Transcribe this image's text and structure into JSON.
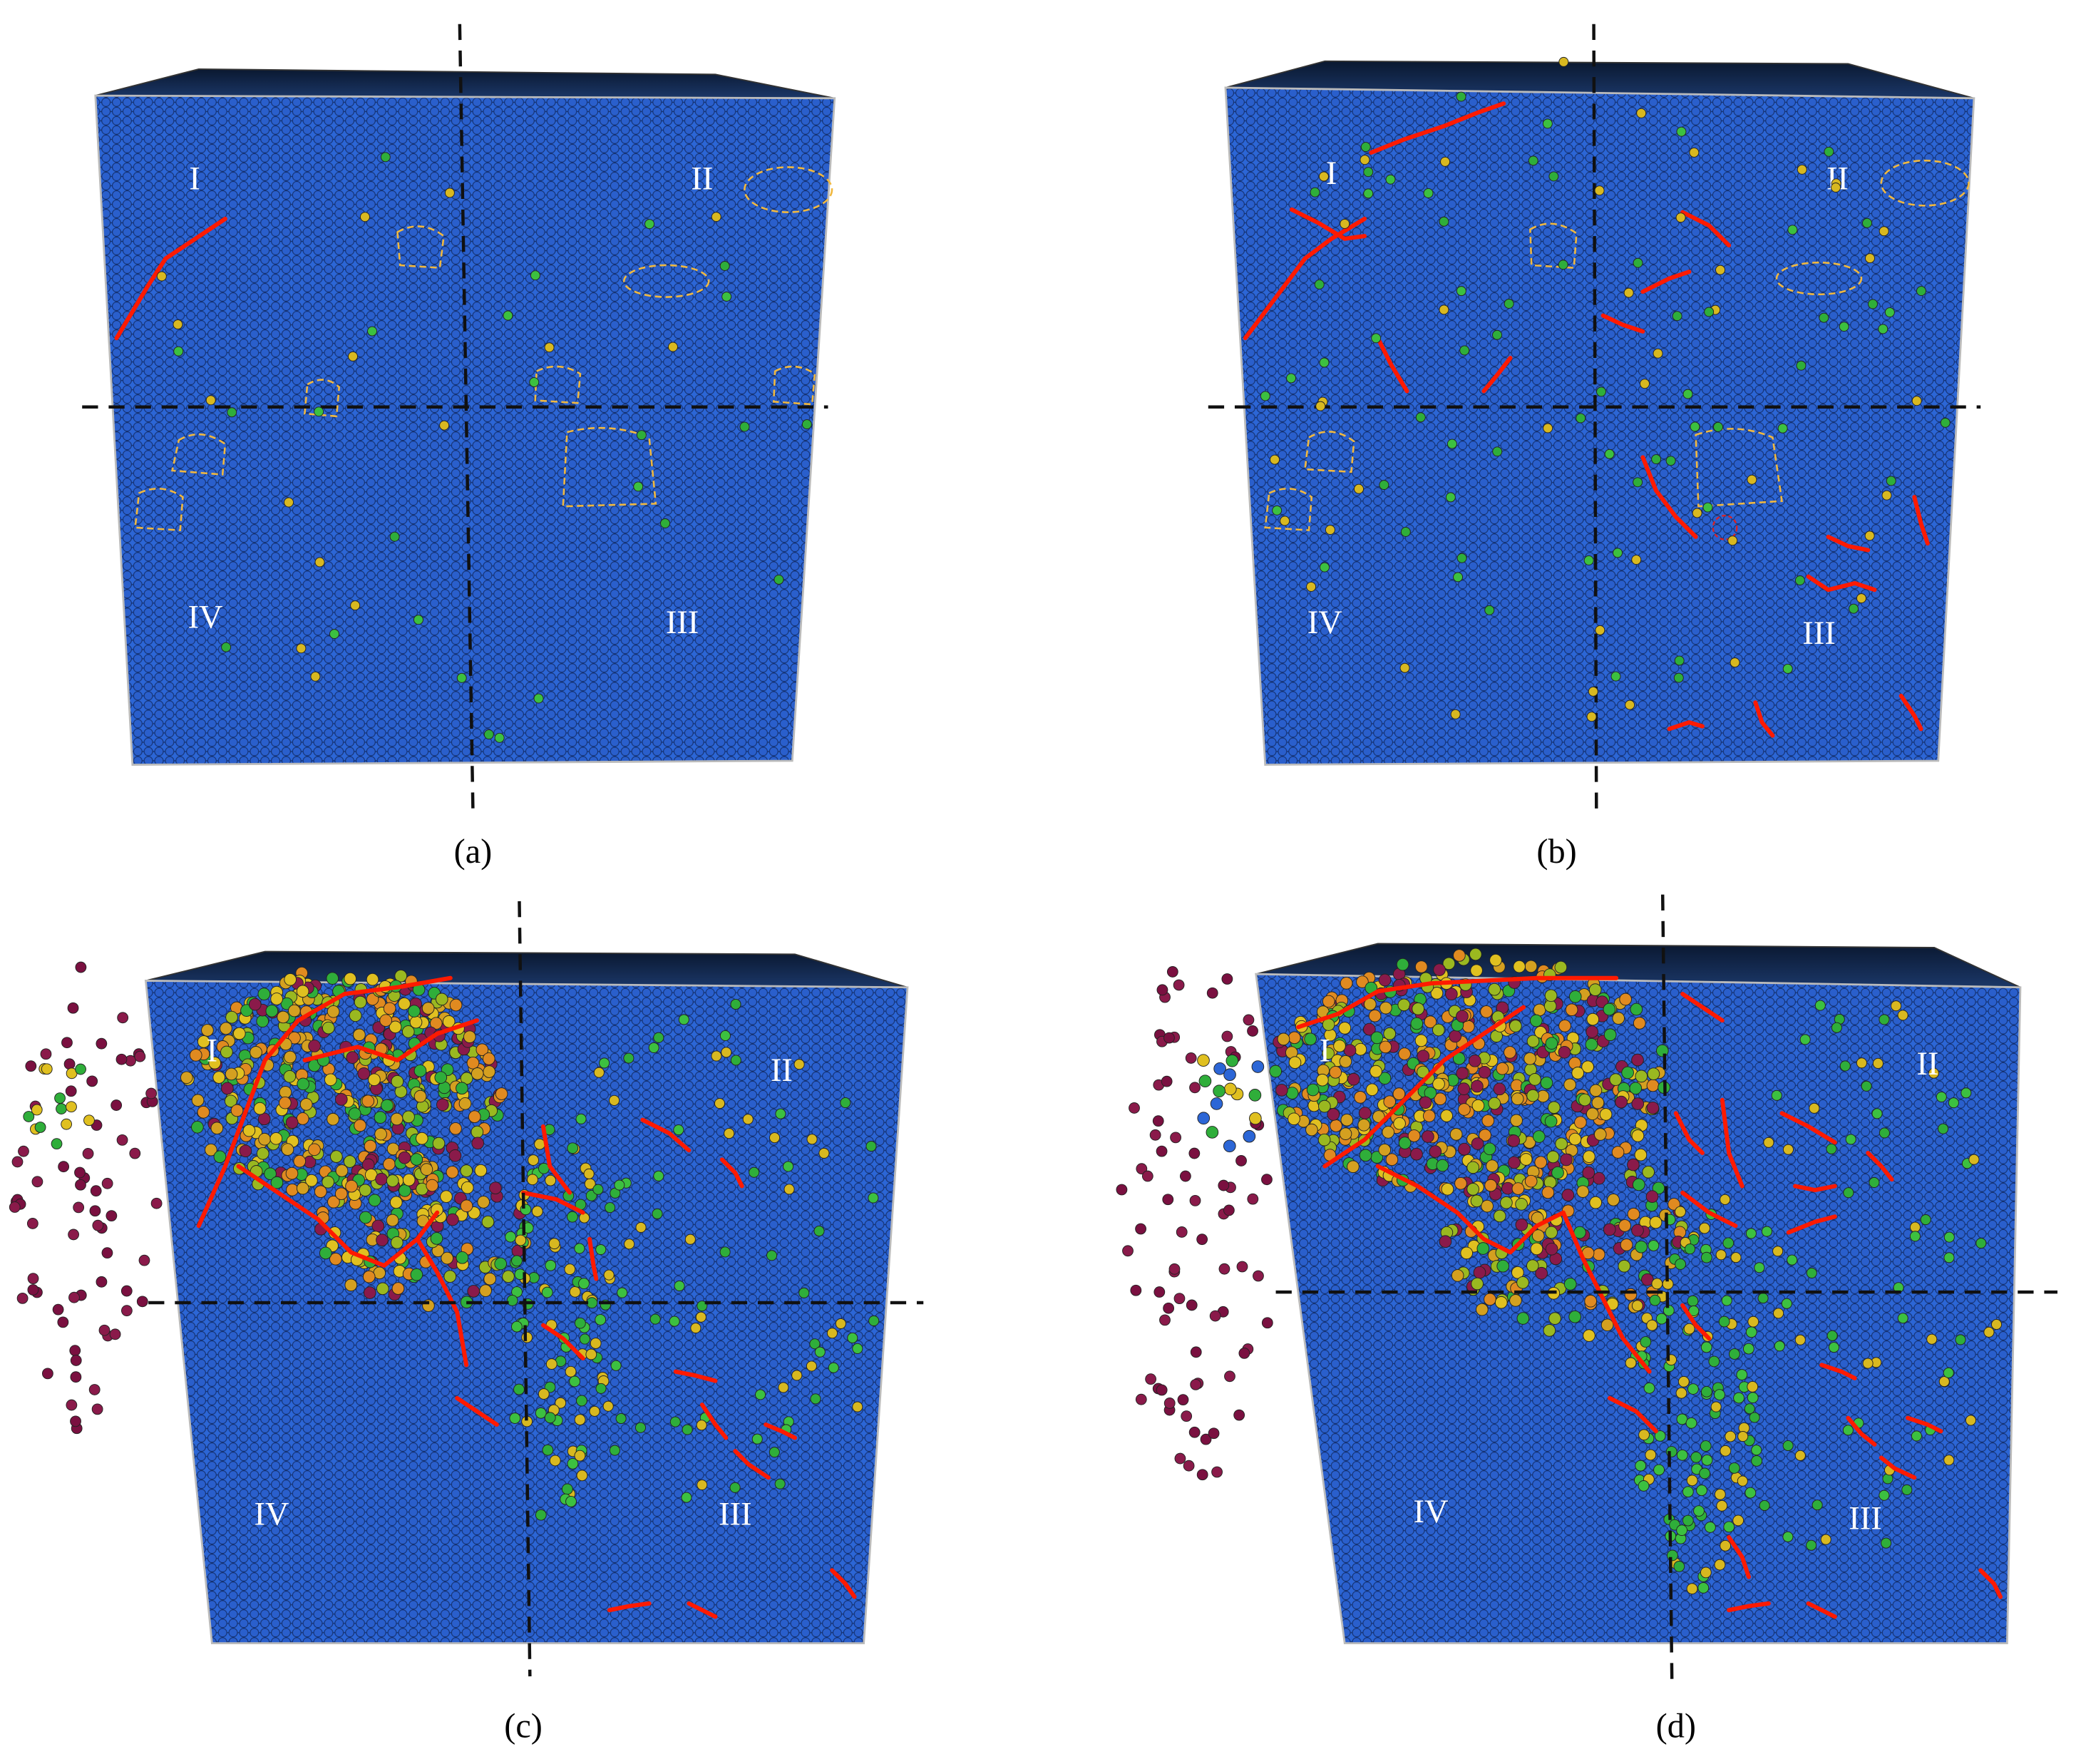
{
  "panels": [
    {
      "label": "(a)",
      "regions": [
        "I",
        "II",
        "III",
        "IV"
      ]
    },
    {
      "label": "(b)",
      "regions": [
        "I",
        "II",
        "III",
        "IV"
      ]
    },
    {
      "label": "(c)",
      "regions": [
        "I",
        "II",
        "III",
        "IV"
      ]
    },
    {
      "label": "(d)",
      "regions": [
        "I",
        "II",
        "III",
        "IV"
      ]
    }
  ]
}
